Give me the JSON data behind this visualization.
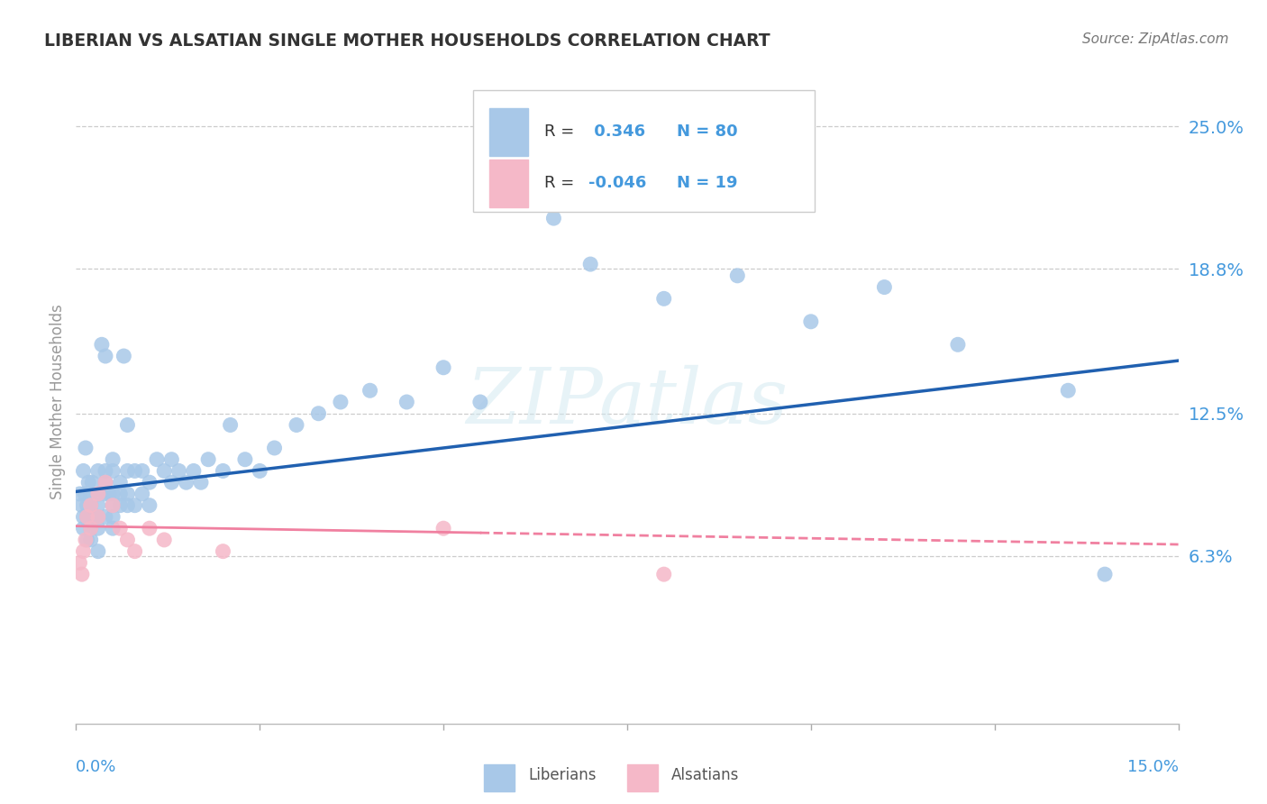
{
  "title": "LIBERIAN VS ALSATIAN SINGLE MOTHER HOUSEHOLDS CORRELATION CHART",
  "source": "Source: ZipAtlas.com",
  "ylabel": "Single Mother Households",
  "xlim": [
    0.0,
    0.15
  ],
  "ylim": [
    -0.01,
    0.27
  ],
  "ytick_labels": [
    "6.3%",
    "12.5%",
    "18.8%",
    "25.0%"
  ],
  "ytick_positions": [
    0.063,
    0.125,
    0.188,
    0.25
  ],
  "liberian_color": "#a8c8e8",
  "alsatian_color": "#f5b8c8",
  "liberian_line_color": "#2060b0",
  "alsatian_line_color": "#f080a0",
  "R_liberian": 0.346,
  "N_liberian": 80,
  "R_alsatian": -0.046,
  "N_alsatian": 19,
  "watermark": "ZIPatlas",
  "background_color": "#ffffff",
  "grid_color": "#cccccc",
  "axis_label_color": "#4499dd",
  "title_color": "#333333",
  "liberian_x": [
    0.0005,
    0.0008,
    0.001,
    0.001,
    0.001,
    0.0012,
    0.0013,
    0.0015,
    0.0015,
    0.0015,
    0.0017,
    0.002,
    0.002,
    0.002,
    0.002,
    0.0022,
    0.0025,
    0.003,
    0.003,
    0.003,
    0.003,
    0.003,
    0.003,
    0.0035,
    0.004,
    0.004,
    0.004,
    0.004,
    0.004,
    0.0045,
    0.005,
    0.005,
    0.005,
    0.005,
    0.005,
    0.005,
    0.006,
    0.006,
    0.006,
    0.0065,
    0.007,
    0.007,
    0.007,
    0.007,
    0.008,
    0.008,
    0.009,
    0.009,
    0.01,
    0.01,
    0.011,
    0.012,
    0.013,
    0.013,
    0.014,
    0.015,
    0.016,
    0.017,
    0.018,
    0.02,
    0.021,
    0.023,
    0.025,
    0.027,
    0.03,
    0.033,
    0.036,
    0.04,
    0.045,
    0.05,
    0.055,
    0.065,
    0.07,
    0.08,
    0.09,
    0.1,
    0.11,
    0.12,
    0.135,
    0.14
  ],
  "liberian_y": [
    0.09,
    0.085,
    0.1,
    0.075,
    0.08,
    0.09,
    0.11,
    0.07,
    0.08,
    0.085,
    0.095,
    0.07,
    0.075,
    0.085,
    0.09,
    0.095,
    0.08,
    0.065,
    0.075,
    0.08,
    0.085,
    0.09,
    0.1,
    0.155,
    0.08,
    0.09,
    0.095,
    0.1,
    0.15,
    0.09,
    0.075,
    0.08,
    0.085,
    0.09,
    0.1,
    0.105,
    0.085,
    0.09,
    0.095,
    0.15,
    0.085,
    0.09,
    0.1,
    0.12,
    0.085,
    0.1,
    0.09,
    0.1,
    0.085,
    0.095,
    0.105,
    0.1,
    0.095,
    0.105,
    0.1,
    0.095,
    0.1,
    0.095,
    0.105,
    0.1,
    0.12,
    0.105,
    0.1,
    0.11,
    0.12,
    0.125,
    0.13,
    0.135,
    0.13,
    0.145,
    0.13,
    0.21,
    0.19,
    0.175,
    0.185,
    0.165,
    0.18,
    0.155,
    0.135,
    0.055
  ],
  "alsatian_x": [
    0.0005,
    0.0008,
    0.001,
    0.0013,
    0.0015,
    0.002,
    0.002,
    0.003,
    0.003,
    0.004,
    0.005,
    0.006,
    0.007,
    0.008,
    0.01,
    0.012,
    0.02,
    0.05,
    0.08
  ],
  "alsatian_y": [
    0.06,
    0.055,
    0.065,
    0.07,
    0.08,
    0.085,
    0.075,
    0.09,
    0.08,
    0.095,
    0.085,
    0.075,
    0.07,
    0.065,
    0.075,
    0.07,
    0.065,
    0.075,
    0.055
  ],
  "lib_trend_x0": 0.0,
  "lib_trend_y0": 0.091,
  "lib_trend_x1": 0.15,
  "lib_trend_y1": 0.148,
  "als_trend_x0": 0.0,
  "als_trend_y0": 0.076,
  "als_trend_x1": 0.15,
  "als_trend_y1": 0.068
}
